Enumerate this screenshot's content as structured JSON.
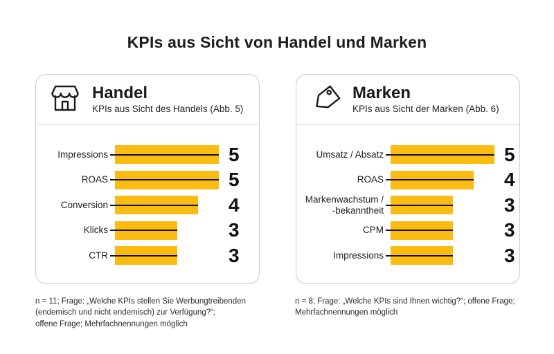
{
  "title": "KPIs aus Sicht von Handel und Marken",
  "colors": {
    "bar": "#FBBC12",
    "leader_line": "#121212",
    "card_border": "#C9CBCF",
    "text": "#1E1E1E"
  },
  "panels": [
    {
      "heading": "Handel",
      "subtitle": "KPIs aus Sicht des Handels (Abb. 5)",
      "icon": "storefront-icon",
      "bars": [
        {
          "label": "Impressions",
          "value": 5
        },
        {
          "label": "ROAS",
          "value": 5
        },
        {
          "label": "Conversion",
          "value": 4
        },
        {
          "label": "Klicks",
          "value": 3
        },
        {
          "label": "CTR",
          "value": 3
        }
      ],
      "footnote": "n = 11; Frage: „Welche KPIs stellen Sie Werbungtreibenden\n(endemisch und nicht endemisch) zur Verfügung?“;\noffene Frage; Mehrfachnennungen möglich"
    },
    {
      "heading": "Marken",
      "subtitle": "KPIs aus Sicht der Marken (Abb. 6)",
      "icon": "price-tag-icon",
      "bars": [
        {
          "label": "Umsatz / Absatz",
          "value": 5
        },
        {
          "label": "ROAS",
          "value": 4
        },
        {
          "label": "Markenwachstum /\n-bekanntheit",
          "value": 3
        },
        {
          "label": "CPM",
          "value": 3
        },
        {
          "label": "Impressions",
          "value": 3
        }
      ],
      "footnote": "n = 8; Frage: „Welche KPIs sind Ihnen wichtig?“; offene Frage;\nMehrfachnennungen möglich"
    }
  ],
  "chart_data": [
    {
      "type": "bar",
      "orientation": "horizontal",
      "title": "Handel",
      "subtitle": "KPIs aus Sicht des Handels (Abb. 5)",
      "categories": [
        "Impressions",
        "ROAS",
        "Conversion",
        "Klicks",
        "CTR"
      ],
      "values": [
        5,
        5,
        4,
        3,
        3
      ],
      "xlim": [
        0,
        5
      ],
      "bar_color": "#FBBC12",
      "value_labels_shown": true,
      "grid": false,
      "footnote": "n = 11; Frage: „Welche KPIs stellen Sie Werbungtreibenden (endemisch und nicht endemisch) zur Verfügung?“; offene Frage; Mehrfachnennungen möglich"
    },
    {
      "type": "bar",
      "orientation": "horizontal",
      "title": "Marken",
      "subtitle": "KPIs aus Sicht der Marken (Abb. 6)",
      "categories": [
        "Umsatz / Absatz",
        "ROAS",
        "Markenwachstum / -bekanntheit",
        "CPM",
        "Impressions"
      ],
      "values": [
        5,
        4,
        3,
        3,
        3
      ],
      "xlim": [
        0,
        5
      ],
      "bar_color": "#FBBC12",
      "value_labels_shown": true,
      "grid": false,
      "footnote": "n = 8; Frage: „Welche KPIs sind Ihnen wichtig?“; offene Frage; Mehrfachnennungen möglich"
    }
  ]
}
